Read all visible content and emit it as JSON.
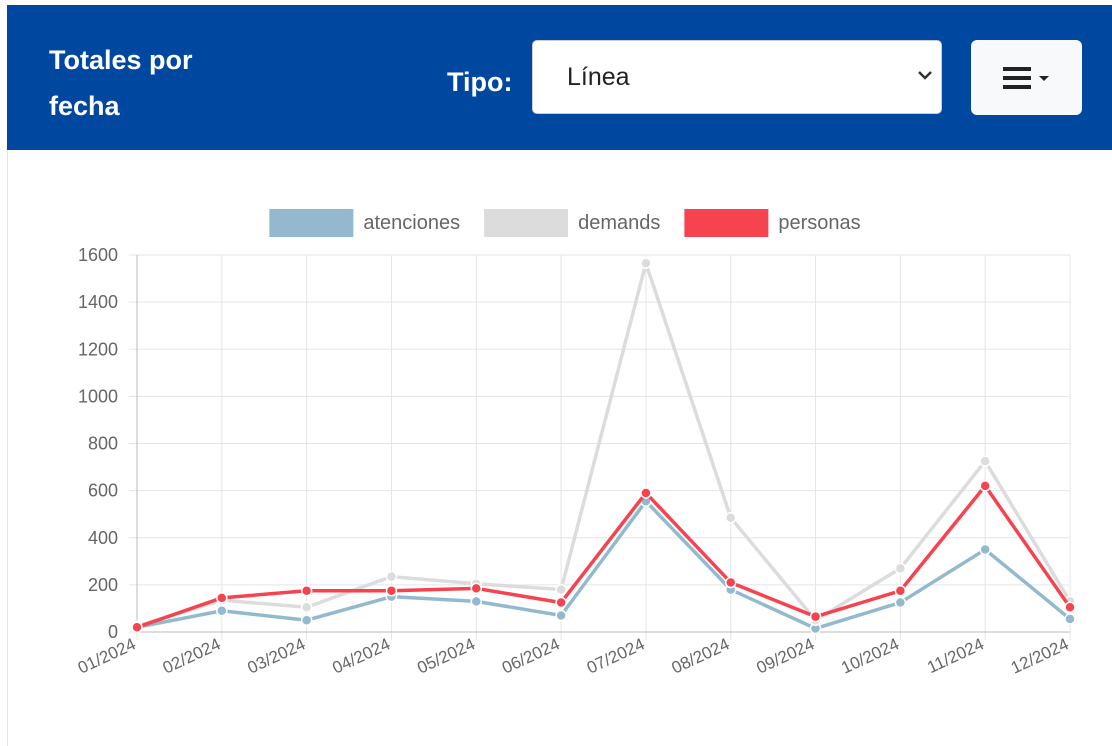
{
  "header": {
    "title": "Totales por fecha",
    "type_label": "Tipo:",
    "select_value": "Línea"
  },
  "chart_data": {
    "type": "line",
    "categories": [
      "01/2024",
      "02/2024",
      "03/2024",
      "04/2024",
      "05/2024",
      "06/2024",
      "07/2024",
      "08/2024",
      "09/2024",
      "10/2024",
      "11/2024",
      "12/2024"
    ],
    "series": [
      {
        "name": "atenciones",
        "color": "#93b9cf",
        "values": [
          20,
          90,
          50,
          150,
          130,
          70,
          555,
          180,
          15,
          125,
          350,
          55
        ]
      },
      {
        "name": "demands",
        "color": "#dcdcdc",
        "values": [
          25,
          135,
          105,
          235,
          205,
          180,
          1565,
          485,
          50,
          270,
          725,
          130
        ]
      },
      {
        "name": "personas",
        "color": "#f5434f",
        "values": [
          20,
          145,
          175,
          175,
          185,
          125,
          590,
          210,
          65,
          175,
          620,
          105
        ]
      }
    ],
    "ylim": [
      0,
      1600
    ],
    "yticks": [
      0,
      200,
      400,
      600,
      800,
      1000,
      1200,
      1400,
      1600
    ],
    "grid": true,
    "legend": "top"
  }
}
